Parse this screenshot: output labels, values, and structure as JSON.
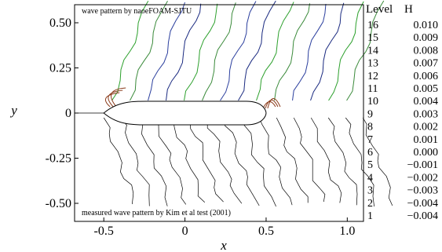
{
  "chart_data": {
    "type": "contour",
    "xlabel": "x",
    "ylabel": "y",
    "x_ticks": [
      "-0.5",
      "0",
      "0.5",
      "1.0"
    ],
    "x_tick_values": [
      -0.5,
      0,
      0.5,
      1.0
    ],
    "y_ticks": [
      "0.50",
      "0.25",
      "0",
      "-0.25",
      "-0.50"
    ],
    "y_tick_values": [
      0.5,
      0.25,
      0,
      -0.25,
      -0.5
    ],
    "xlim": [
      -0.68,
      1.1
    ],
    "ylim": [
      -0.6,
      0.6
    ],
    "annotations": {
      "upper": "wave pattern by naoeFOAM-SJTU",
      "lower": "measured wave pattern by Kim et al test (2001)"
    },
    "legend": {
      "header_level": "Level",
      "header_h": "H",
      "entries": [
        {
          "level": "16",
          "h": "0.010"
        },
        {
          "level": "15",
          "h": "0.009"
        },
        {
          "level": "14",
          "h": "0.008"
        },
        {
          "level": "13",
          "h": "0.007"
        },
        {
          "level": "12",
          "h": "0.006"
        },
        {
          "level": "11",
          "h": "0.005"
        },
        {
          "level": "10",
          "h": "0.004"
        },
        {
          "level": "9",
          "h": "0.003"
        },
        {
          "level": "8",
          "h": "0.002"
        },
        {
          "level": "7",
          "h": "0.001"
        },
        {
          "level": "6",
          "h": "0.000"
        },
        {
          "level": "5",
          "h": "−0.001"
        },
        {
          "level": "4",
          "h": "−0.002"
        },
        {
          "level": "3",
          "h": "−0.003"
        },
        {
          "level": "2",
          "h": "−0.004"
        },
        {
          "level": "1",
          "h": "−0.004"
        }
      ]
    },
    "hull": {
      "x_start": -0.5,
      "x_end": 0.5,
      "half_width": 0.065
    },
    "colors": {
      "upper_contours": [
        "#2ca02c",
        "#3a8a3a",
        "#2b3f9e",
        "#1a2a80"
      ],
      "bow_contours": "#8b3a1a",
      "lower_contours": "#000000"
    }
  }
}
